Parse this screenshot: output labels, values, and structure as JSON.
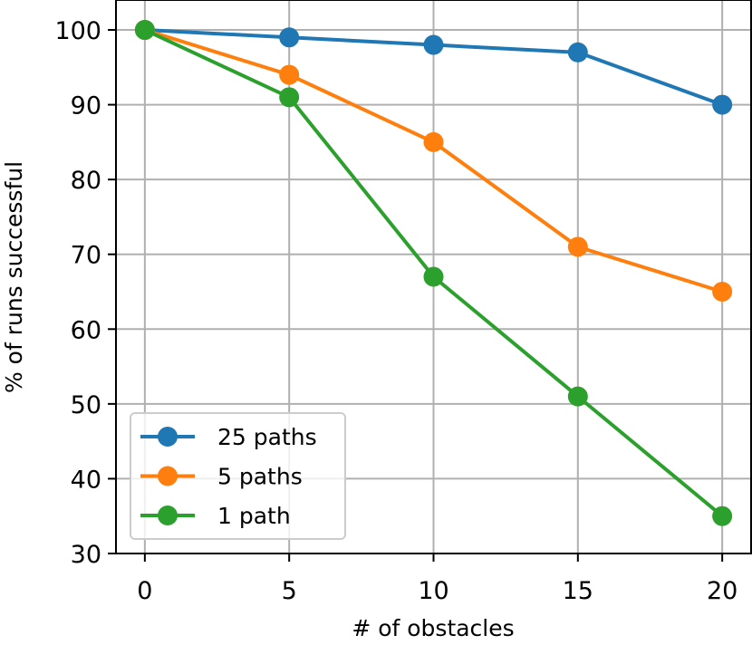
{
  "chart_data": {
    "type": "line",
    "xlabel": "# of obstacles",
    "ylabel": "% of runs successful",
    "x": [
      0,
      5,
      10,
      15,
      20
    ],
    "xlim": [
      -1,
      21
    ],
    "ylim": [
      30,
      104
    ],
    "xticks": [
      "0",
      "5",
      "10",
      "15",
      "20"
    ],
    "yticks": [
      "30",
      "40",
      "50",
      "60",
      "70",
      "80",
      "90",
      "100"
    ],
    "grid": true,
    "legend_position": "lower-left",
    "series": [
      {
        "name": "25 paths",
        "color": "#1f77b4",
        "values": [
          100,
          99,
          98,
          97,
          90
        ]
      },
      {
        "name": "5 paths",
        "color": "#ff7f0e",
        "values": [
          100,
          94,
          85,
          71,
          65
        ]
      },
      {
        "name": "1 path",
        "color": "#2ca02c",
        "values": [
          100,
          91,
          67,
          51,
          35
        ]
      }
    ]
  }
}
